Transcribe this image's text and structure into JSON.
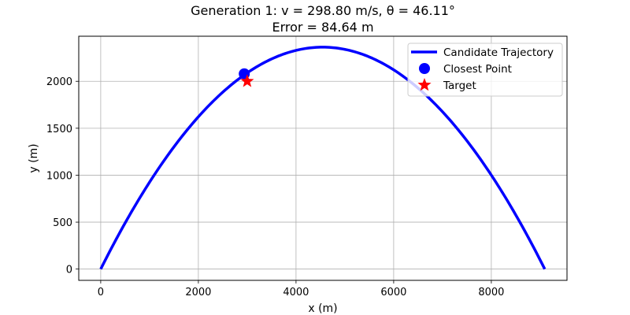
{
  "chart_data": {
    "type": "line",
    "title": "Generation 1: v = 298.80 m/s, θ = 46.11°",
    "subtitle": "Error = 84.64 m",
    "xlabel": "x (m)",
    "ylabel": "y (m)",
    "xlim": [
      -450,
      9550
    ],
    "ylim": [
      -120,
      2480
    ],
    "xticks": [
      0,
      2000,
      4000,
      6000,
      8000
    ],
    "yticks": [
      0,
      500,
      1000,
      1500,
      2000
    ],
    "grid": true,
    "legend_placement": "top-right",
    "trajectory": {
      "name": "Candidate Trajectory",
      "color": "#0000ff",
      "launch_speed": 298.8,
      "launch_angle_deg": 46.11,
      "g": 9.81
    },
    "closest_point": {
      "name": "Closest Point",
      "x": 2940,
      "y": 2080,
      "color": "#0000ff"
    },
    "target": {
      "name": "Target",
      "x": 3000,
      "y": 2000,
      "color": "#ff0000"
    }
  }
}
